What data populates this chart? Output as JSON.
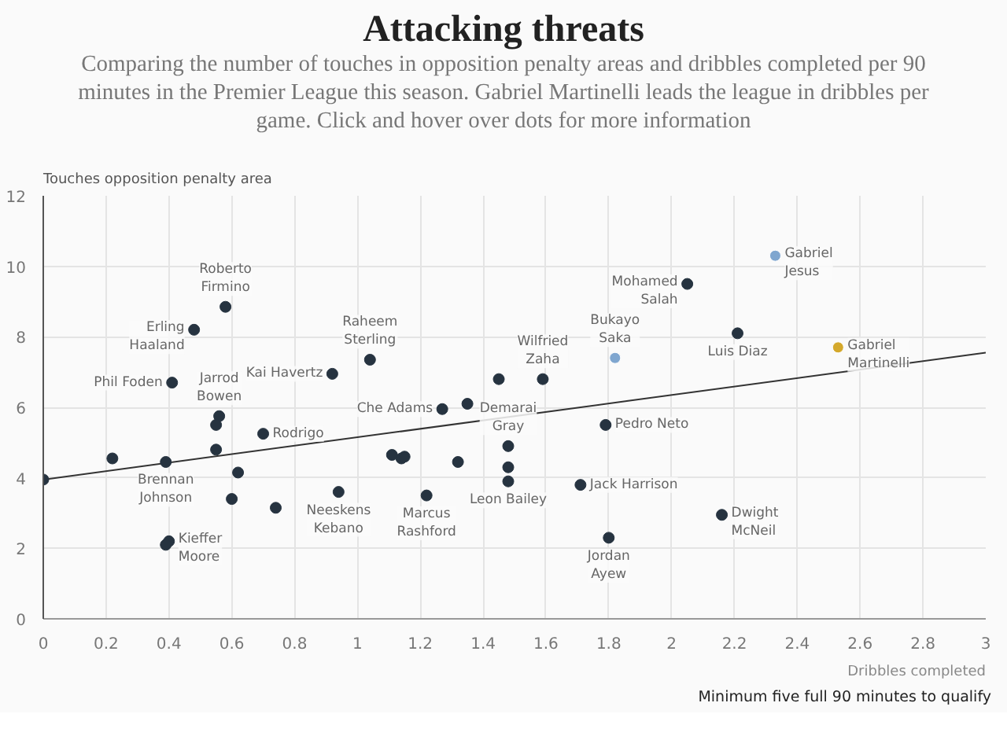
{
  "chart_data": {
    "type": "scatter",
    "title": "Attacking threats",
    "subtitle": "Comparing the number of touches in opposition penalty areas and dribbles completed per 90 minutes in the Premier League this season. Gabriel Martinelli leads the league in dribbles per game. Click and hover over dots for more information",
    "xlabel": "Dribbles completed",
    "ylabel": "Touches opposition penalty area",
    "annotations": [
      "Minimum five full 90 minutes to qualify"
    ],
    "xlim": [
      0,
      3
    ],
    "ylim": [
      0,
      12
    ],
    "xticks": [
      0,
      0.2,
      0.4,
      0.6,
      0.8,
      1,
      1.2,
      1.4,
      1.6,
      1.8,
      2,
      2.2,
      2.4,
      2.6,
      2.8,
      3
    ],
    "yticks": [
      0,
      2,
      4,
      6,
      8,
      10,
      12
    ],
    "grid": true,
    "marker": "circle",
    "series": [
      {
        "name": "Gabriel Jesus",
        "color": "#7fa6cf",
        "x": [
          2.33
        ],
        "values": [
          10.3
        ]
      },
      {
        "name": "Mohamed Salah",
        "color": "#263340",
        "x": [
          2.05
        ],
        "values": [
          9.5
        ]
      },
      {
        "name": "Luis Diaz",
        "color": "#263340",
        "x": [
          2.21
        ],
        "values": [
          8.1
        ]
      },
      {
        "name": "Gabriel Martinelli",
        "color": "#d4a82b",
        "x": [
          2.53
        ],
        "values": [
          7.7
        ]
      },
      {
        "name": "Bukayo Saka",
        "color": "#7fa6cf",
        "x": [
          1.82
        ],
        "values": [
          7.4
        ]
      },
      {
        "name": "Wilfried Zaha",
        "color": "#263340",
        "x": [
          1.59
        ],
        "values": [
          6.8
        ]
      },
      {
        "name": "Pedro Neto",
        "color": "#263340",
        "x": [
          1.79
        ],
        "values": [
          5.5
        ]
      },
      {
        "name": "Demarai Gray",
        "color": "#263340",
        "x": [
          1.48
        ],
        "values": [
          4.9
        ]
      },
      {
        "name": "Leon Bailey",
        "color": "#263340",
        "x": [
          1.48
        ],
        "values": [
          3.9
        ]
      },
      {
        "name": "Jack Harrison",
        "color": "#263340",
        "x": [
          1.71
        ],
        "values": [
          3.8
        ]
      },
      {
        "name": "Dwight McNeil",
        "color": "#263340",
        "x": [
          2.16
        ],
        "values": [
          2.95
        ]
      },
      {
        "name": "Jordan Ayew",
        "color": "#263340",
        "x": [
          1.8
        ],
        "values": [
          2.3
        ]
      },
      {
        "name": "Roberto Firmino",
        "color": "#263340",
        "x": [
          0.58
        ],
        "values": [
          8.85
        ]
      },
      {
        "name": "Erling Haaland",
        "color": "#263340",
        "x": [
          0.48
        ],
        "values": [
          8.2
        ]
      },
      {
        "name": "Raheem Sterling",
        "color": "#263340",
        "x": [
          1.04
        ],
        "values": [
          7.35
        ]
      },
      {
        "name": "Kai Havertz",
        "color": "#263340",
        "x": [
          0.92
        ],
        "values": [
          6.95
        ]
      },
      {
        "name": "Phil Foden",
        "color": "#263340",
        "x": [
          0.41
        ],
        "values": [
          6.7
        ]
      },
      {
        "name": "Che Adams",
        "color": "#263340",
        "x": [
          1.27
        ],
        "values": [
          5.95
        ]
      },
      {
        "name": "Jarrod Bowen",
        "color": "#263340",
        "x": [
          0.56
        ],
        "values": [
          5.75
        ]
      },
      {
        "name": "Rodrigo",
        "color": "#263340",
        "x": [
          0.7
        ],
        "values": [
          5.25
        ]
      },
      {
        "name": "Brennan Johnson",
        "color": "#263340",
        "x": [
          0.39
        ],
        "values": [
          4.45
        ]
      },
      {
        "name": "Neeskens Kebano",
        "color": "#263340",
        "x": [
          0.94
        ],
        "values": [
          3.6
        ]
      },
      {
        "name": "Marcus Rashford",
        "color": "#263340",
        "x": [
          1.22
        ],
        "values": [
          3.5
        ]
      },
      {
        "name": "Kieffer Moore",
        "color": "#263340",
        "x": [
          0.4
        ],
        "values": [
          2.2
        ]
      },
      {
        "color": "#263340",
        "x": [
          1.45,
          1.35,
          1.32,
          1.48,
          0.55,
          0.55,
          0.22,
          1.11,
          1.14,
          1.15,
          0.62,
          0,
          0.6,
          0.74,
          0.39
        ],
        "values": [
          6.8,
          6.1,
          4.45,
          4.3,
          5.5,
          4.8,
          4.55,
          4.65,
          4.55,
          4.6,
          4.15,
          3.95,
          3.4,
          3.15,
          2.1
        ]
      },
      {
        "type": "line",
        "marker": "none",
        "color": "#333333",
        "x": [
          0,
          3
        ],
        "values": [
          3.95,
          7.55
        ]
      }
    ]
  }
}
